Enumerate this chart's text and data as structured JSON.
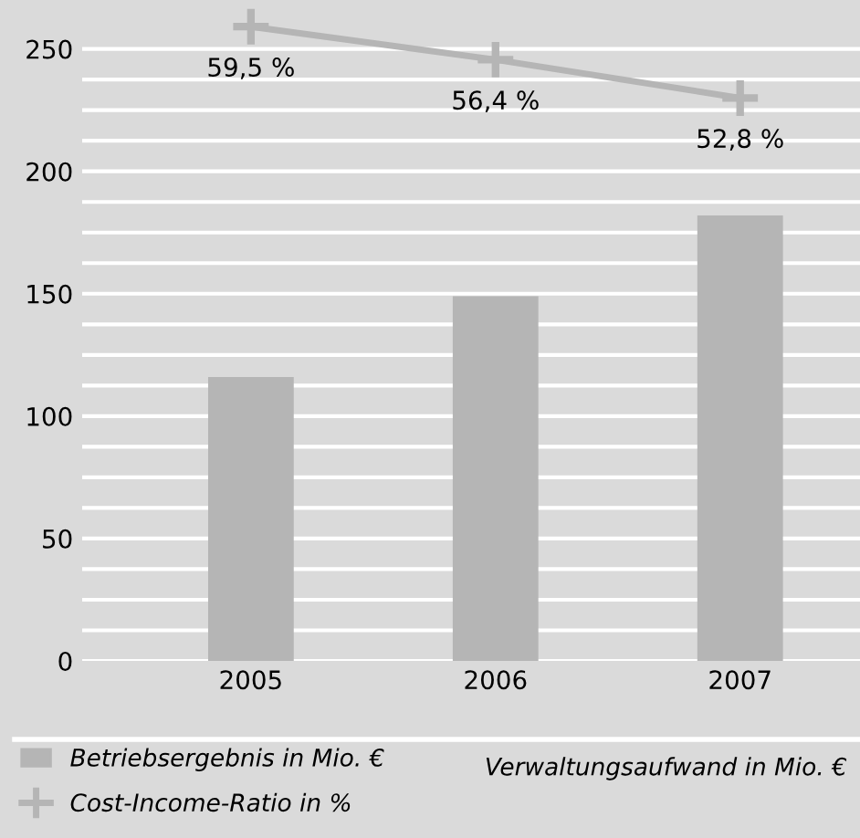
{
  "chart_data": {
    "type": "bar",
    "categories": [
      "2005",
      "2006",
      "2007"
    ],
    "series": [
      {
        "name": "Betriebsergebnis in Mio. €",
        "color": "#b5b5b5",
        "values": [
          116,
          149,
          182
        ]
      },
      {
        "name": "Cost-Income-Ratio in %",
        "type": "line",
        "axis": "y2",
        "color": "#b5b5b5",
        "values": [
          59.5,
          56.4,
          52.8
        ],
        "value_labels": [
          "59,5 %",
          "56,4 %",
          "52,8 %"
        ]
      }
    ],
    "ylim": [
      0,
      270
    ],
    "yticks": [
      0,
      {
        "value": 12.5,
        "label": null
      },
      {
        "value": 25,
        "label": null
      },
      {
        "value": 37.5,
        "label": null
      },
      50,
      {
        "value": 62.5,
        "label": null
      },
      {
        "value": 75,
        "label": null
      },
      {
        "value": 87.5,
        "label": null
      },
      100,
      {
        "value": 112.5,
        "label": null
      },
      {
        "value": 125,
        "label": null
      },
      {
        "value": 137.5,
        "label": null
      },
      150,
      {
        "value": 162.5,
        "label": null
      },
      {
        "value": 175,
        "label": null
      },
      {
        "value": 187.5,
        "label": null
      },
      200,
      {
        "value": 212.5,
        "label": null
      },
      {
        "value": 225,
        "label": null
      },
      {
        "value": 237.5,
        "label": null
      },
      250
    ],
    "y2lim": [
      0,
      62
    ],
    "grid": "y",
    "marker": "cross",
    "legend": "bottom",
    "annotations": [
      "Verwaltungsaufwand in Mio. €"
    ]
  }
}
